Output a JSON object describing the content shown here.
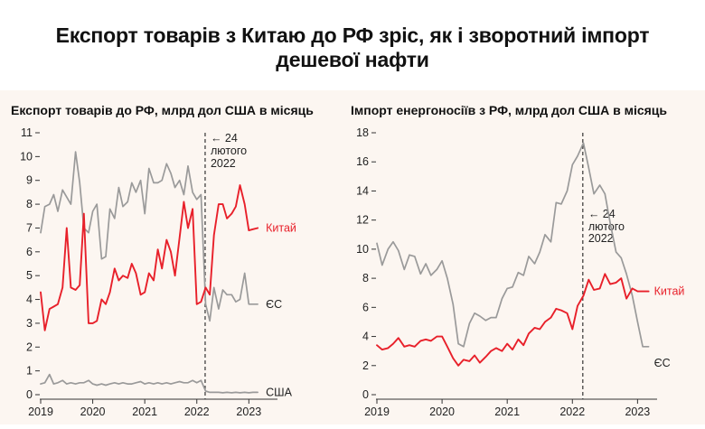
{
  "page": {
    "headline_line1": "Експорт товарів з Китаю до РФ зріс, як і зворотний імпорт",
    "headline_line2": "дешевої нафти"
  },
  "colors": {
    "china": "#e8202a",
    "eu": "#9a9a9a",
    "usa": "#9a9a9a",
    "marker": "#333333",
    "background": "#fcf6f1"
  },
  "chart_data": [
    {
      "type": "line",
      "title": "Експорт товарів до РФ, млрд дол США в місяць",
      "xlabel": "",
      "ylabel": "",
      "x_ticks": [
        2019,
        2020,
        2021,
        2022,
        2023
      ],
      "xlim": [
        2019.0,
        2023.55
      ],
      "ylim": [
        0,
        11
      ],
      "y_ticks": [
        0,
        1,
        2,
        3,
        4,
        5,
        6,
        7,
        8,
        9,
        10,
        11
      ],
      "annotation": {
        "x": 2022.16,
        "lines": [
          "← 24",
          "лютого",
          "2022"
        ]
      },
      "series": [
        {
          "name": "Китай",
          "color": "#e8202a",
          "x": [
            2019.0,
            2019.08,
            2019.17,
            2019.25,
            2019.33,
            2019.42,
            2019.5,
            2019.58,
            2019.67,
            2019.75,
            2019.83,
            2019.92,
            2020.0,
            2020.08,
            2020.17,
            2020.25,
            2020.33,
            2020.42,
            2020.5,
            2020.58,
            2020.67,
            2020.75,
            2020.83,
            2020.92,
            2021.0,
            2021.08,
            2021.17,
            2021.25,
            2021.33,
            2021.42,
            2021.5,
            2021.58,
            2021.67,
            2021.75,
            2021.83,
            2021.92,
            2022.0,
            2022.08,
            2022.17,
            2022.25,
            2022.33,
            2022.42,
            2022.5,
            2022.58,
            2022.67,
            2022.75,
            2022.83,
            2022.92,
            2023.0,
            2023.08,
            2023.17
          ],
          "values": [
            4.3,
            2.7,
            3.6,
            3.7,
            3.8,
            4.5,
            7.0,
            4.5,
            4.4,
            4.6,
            7.6,
            3.0,
            3.0,
            3.1,
            4.0,
            3.8,
            4.3,
            5.3,
            4.8,
            5.0,
            4.9,
            5.5,
            5.1,
            4.2,
            4.3,
            5.1,
            4.8,
            6.1,
            5.3,
            6.5,
            6.0,
            5.0,
            6.6,
            8.1,
            7.0,
            7.8,
            3.8,
            3.9,
            4.5,
            4.2,
            6.7,
            8.0,
            8.0,
            7.4,
            7.6,
            7.9,
            8.8,
            8.0,
            6.9,
            6.95,
            7.0
          ],
          "end_label": "Китай"
        },
        {
          "name": "ЄС",
          "color": "#9a9a9a",
          "x": [
            2019.0,
            2019.08,
            2019.17,
            2019.25,
            2019.33,
            2019.42,
            2019.5,
            2019.58,
            2019.67,
            2019.75,
            2019.83,
            2019.92,
            2020.0,
            2020.08,
            2020.17,
            2020.25,
            2020.33,
            2020.42,
            2020.5,
            2020.58,
            2020.67,
            2020.75,
            2020.83,
            2020.92,
            2021.0,
            2021.08,
            2021.17,
            2021.25,
            2021.33,
            2021.42,
            2021.5,
            2021.58,
            2021.67,
            2021.75,
            2021.83,
            2021.92,
            2022.0,
            2022.08,
            2022.17,
            2022.25,
            2022.33,
            2022.42,
            2022.5,
            2022.58,
            2022.67,
            2022.75,
            2022.83,
            2022.92,
            2023.0,
            2023.08,
            2023.17
          ],
          "values": [
            6.8,
            7.9,
            8.0,
            8.4,
            7.7,
            8.6,
            8.3,
            8.0,
            10.2,
            8.9,
            7.0,
            6.8,
            7.7,
            8.0,
            5.7,
            5.8,
            7.8,
            7.4,
            8.7,
            7.9,
            8.1,
            8.9,
            8.5,
            9.0,
            7.6,
            9.5,
            8.9,
            8.9,
            9.0,
            9.7,
            9.3,
            8.7,
            9.0,
            8.4,
            9.6,
            8.5,
            8.2,
            8.4,
            3.8,
            3.1,
            4.5,
            3.6,
            4.4,
            4.2,
            4.2,
            3.9,
            4.0,
            5.1,
            3.8,
            3.8,
            3.8
          ],
          "end_label": "ЄС"
        },
        {
          "name": "США",
          "color": "#9a9a9a",
          "x": [
            2019.0,
            2019.08,
            2019.17,
            2019.25,
            2019.33,
            2019.42,
            2019.5,
            2019.58,
            2019.67,
            2019.75,
            2019.83,
            2019.92,
            2020.0,
            2020.08,
            2020.17,
            2020.25,
            2020.33,
            2020.42,
            2020.5,
            2020.58,
            2020.67,
            2020.75,
            2020.83,
            2020.92,
            2021.0,
            2021.08,
            2021.17,
            2021.25,
            2021.33,
            2021.42,
            2021.5,
            2021.58,
            2021.67,
            2021.75,
            2021.83,
            2021.92,
            2022.0,
            2022.08,
            2022.17,
            2022.25,
            2022.33,
            2022.42,
            2022.5,
            2022.58,
            2022.67,
            2022.75,
            2022.83,
            2022.92,
            2023.0,
            2023.08,
            2023.17
          ],
          "values": [
            0.45,
            0.5,
            0.85,
            0.45,
            0.5,
            0.6,
            0.45,
            0.5,
            0.45,
            0.5,
            0.5,
            0.6,
            0.45,
            0.4,
            0.45,
            0.4,
            0.45,
            0.5,
            0.45,
            0.5,
            0.45,
            0.45,
            0.5,
            0.55,
            0.45,
            0.5,
            0.45,
            0.5,
            0.45,
            0.5,
            0.45,
            0.5,
            0.55,
            0.5,
            0.5,
            0.6,
            0.5,
            0.6,
            0.15,
            0.1,
            0.1,
            0.1,
            0.08,
            0.1,
            0.08,
            0.1,
            0.08,
            0.1,
            0.08,
            0.1,
            0.1
          ],
          "end_label": "США"
        }
      ]
    },
    {
      "type": "line",
      "title": "Імпорт енергоносіїв з РФ, млрд дол США в місяць",
      "xlabel": "",
      "ylabel": "",
      "x_ticks": [
        2019,
        2020,
        2021,
        2022,
        2023
      ],
      "xlim": [
        2019.0,
        2023.3
      ],
      "ylim": [
        0,
        18
      ],
      "y_ticks": [
        0,
        2,
        4,
        6,
        8,
        10,
        12,
        14,
        16,
        18
      ],
      "annotation": {
        "x": 2022.16,
        "lines": [
          "← 24",
          "лютого",
          "2022"
        ]
      },
      "series": [
        {
          "name": "ЄС",
          "color": "#9a9a9a",
          "x": [
            2019.0,
            2019.08,
            2019.17,
            2019.25,
            2019.33,
            2019.42,
            2019.5,
            2019.58,
            2019.67,
            2019.75,
            2019.83,
            2019.92,
            2020.0,
            2020.08,
            2020.17,
            2020.25,
            2020.33,
            2020.42,
            2020.5,
            2020.58,
            2020.67,
            2020.75,
            2020.83,
            2020.92,
            2021.0,
            2021.08,
            2021.17,
            2021.25,
            2021.33,
            2021.42,
            2021.5,
            2021.58,
            2021.67,
            2021.75,
            2021.83,
            2021.92,
            2022.0,
            2022.08,
            2022.17,
            2022.25,
            2022.33,
            2022.42,
            2022.5,
            2022.58,
            2022.67,
            2022.75,
            2022.83,
            2022.92,
            2023.0,
            2023.08,
            2023.17
          ],
          "values": [
            10.4,
            8.9,
            10.0,
            10.5,
            9.9,
            8.6,
            9.6,
            9.5,
            8.3,
            9.0,
            8.2,
            8.6,
            9.2,
            8.0,
            6.2,
            3.5,
            3.3,
            4.9,
            5.6,
            5.4,
            5.1,
            5.3,
            5.3,
            6.6,
            7.3,
            7.4,
            8.4,
            8.2,
            9.5,
            9.0,
            9.8,
            11.0,
            10.5,
            13.2,
            13.1,
            14.0,
            15.8,
            16.4,
            17.3,
            15.6,
            13.8,
            14.4,
            13.8,
            11.8,
            9.8,
            9.4,
            8.3,
            6.8,
            5.0,
            3.3,
            3.3
          ],
          "end_label": "ЄС"
        },
        {
          "name": "Китай",
          "color": "#e8202a",
          "x": [
            2019.0,
            2019.08,
            2019.17,
            2019.25,
            2019.33,
            2019.42,
            2019.5,
            2019.58,
            2019.67,
            2019.75,
            2019.83,
            2019.92,
            2020.0,
            2020.08,
            2020.17,
            2020.25,
            2020.33,
            2020.42,
            2020.5,
            2020.58,
            2020.67,
            2020.75,
            2020.83,
            2020.92,
            2021.0,
            2021.08,
            2021.17,
            2021.25,
            2021.33,
            2021.42,
            2021.5,
            2021.58,
            2021.67,
            2021.75,
            2021.83,
            2021.92,
            2022.0,
            2022.08,
            2022.17,
            2022.25,
            2022.33,
            2022.42,
            2022.5,
            2022.58,
            2022.67,
            2022.75,
            2022.83,
            2022.92,
            2023.0,
            2023.08,
            2023.17
          ],
          "values": [
            3.4,
            3.1,
            3.2,
            3.5,
            3.9,
            3.3,
            3.4,
            3.3,
            3.7,
            3.8,
            3.7,
            4.0,
            4.0,
            3.3,
            2.5,
            2.0,
            2.4,
            2.3,
            2.7,
            2.2,
            2.6,
            3.0,
            3.2,
            3.0,
            3.5,
            3.1,
            3.8,
            3.4,
            4.2,
            4.6,
            4.5,
            5.0,
            5.3,
            5.9,
            5.8,
            5.6,
            4.5,
            6.1,
            6.8,
            7.9,
            7.2,
            7.3,
            8.3,
            7.6,
            7.7,
            8.0,
            6.6,
            7.3,
            7.1,
            7.1,
            7.1
          ],
          "end_label": "Китай"
        }
      ]
    }
  ]
}
